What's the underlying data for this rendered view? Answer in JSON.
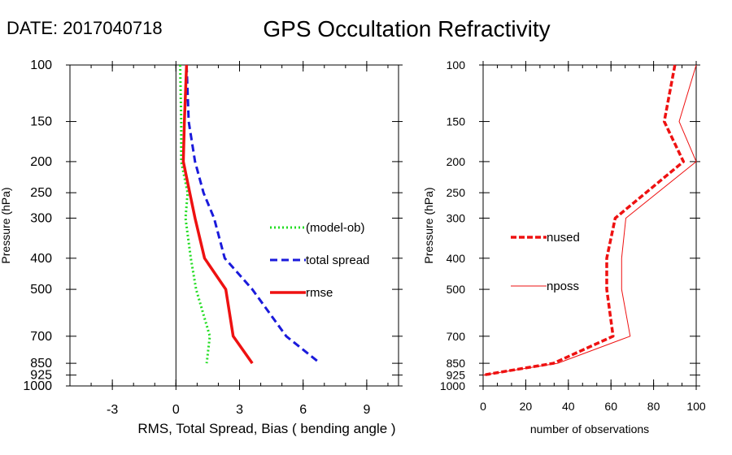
{
  "date_text": "DATE: 2017040718",
  "title": "GPS Occultation Refractivity",
  "chart_data": [
    {
      "type": "line",
      "xlabel": "RMS, Total Spread, Bias ( bending angle )",
      "ylabel": "Pressure (hPa)",
      "xlim": [
        -5,
        10.5
      ],
      "ylim": [
        1000,
        100
      ],
      "y_scale": "log",
      "x_ticks": [
        -3,
        0,
        3,
        6,
        9
      ],
      "y_ticks": [
        100,
        150,
        200,
        250,
        300,
        400,
        500,
        700,
        850,
        925,
        1000
      ],
      "zero_line": 0,
      "legend_position": "right-middle",
      "series": [
        {
          "name": "(model-ob)",
          "color": "#22dd22",
          "dash": "dotted",
          "points": [
            [
              0.2,
              100
            ],
            [
              0.25,
              150
            ],
            [
              0.25,
              200
            ],
            [
              0.55,
              250
            ],
            [
              0.45,
              300
            ],
            [
              0.7,
              400
            ],
            [
              0.95,
              500
            ],
            [
              1.6,
              700
            ],
            [
              1.45,
              850
            ]
          ]
        },
        {
          "name": "total spread",
          "color": "#1a1adb",
          "dash": "dashed",
          "points": [
            [
              0.5,
              100
            ],
            [
              0.6,
              150
            ],
            [
              0.9,
              200
            ],
            [
              1.3,
              250
            ],
            [
              1.8,
              300
            ],
            [
              2.3,
              400
            ],
            [
              3.6,
              500
            ],
            [
              5.2,
              700
            ],
            [
              6.8,
              850
            ]
          ]
        },
        {
          "name": "rmse",
          "color": "#ee1111",
          "dash": "solid",
          "points": [
            [
              0.5,
              100
            ],
            [
              0.4,
              150
            ],
            [
              0.35,
              200
            ],
            [
              0.65,
              250
            ],
            [
              0.9,
              300
            ],
            [
              1.35,
              400
            ],
            [
              2.35,
              500
            ],
            [
              2.7,
              700
            ],
            [
              3.6,
              850
            ]
          ]
        }
      ]
    },
    {
      "type": "line",
      "xlabel": "number of observations",
      "ylabel": "Pressure (hPa)",
      "xlim": [
        0,
        100
      ],
      "ylim": [
        1000,
        100
      ],
      "y_scale": "log",
      "x_ticks": [
        0,
        20,
        40,
        60,
        80,
        100
      ],
      "y_ticks": [
        100,
        150,
        200,
        250,
        300,
        400,
        500,
        700,
        850,
        925,
        1000
      ],
      "legend_position": "left-middle",
      "series": [
        {
          "name": "nused",
          "color": "#ee1111",
          "dash": "dashed-thick",
          "points": [
            [
              90,
              100
            ],
            [
              85,
              150
            ],
            [
              94,
              200
            ],
            [
              62,
              300
            ],
            [
              58,
              400
            ],
            [
              58,
              500
            ],
            [
              61,
              700
            ],
            [
              33,
              850
            ],
            [
              0,
              925
            ]
          ]
        },
        {
          "name": "nposs",
          "color": "#ee1111",
          "dash": "solid-thin",
          "points": [
            [
              100,
              100
            ],
            [
              92,
              150
            ],
            [
              100,
              200
            ],
            [
              67,
              300
            ],
            [
              65,
              400
            ],
            [
              65,
              500
            ],
            [
              69,
              700
            ],
            [
              35,
              850
            ],
            [
              0,
              925
            ]
          ]
        }
      ]
    }
  ]
}
